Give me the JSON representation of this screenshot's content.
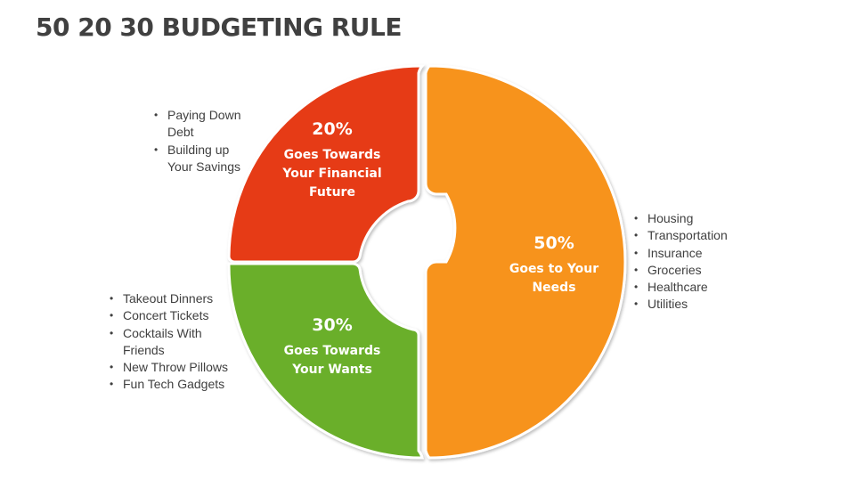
{
  "title": "50 20 30 BUDGETING RULE",
  "colors": {
    "needs": "#F7931E",
    "future": "#E63B16",
    "wants": "#6AAF2A",
    "hole": "#FFFFFF"
  },
  "segments": {
    "needs": {
      "percent": "50%",
      "description": "Goes to Your Needs",
      "value": 50
    },
    "future": {
      "percent": "20%",
      "description": "Goes Towards Your Financial Future",
      "value": 20
    },
    "wants": {
      "percent": "30%",
      "description": "Goes Towards Your Wants",
      "value": 30
    }
  },
  "lists": {
    "needs": [
      "Housing",
      "Transportation",
      "Insurance",
      "Groceries",
      "Healthcare",
      "Utilities"
    ],
    "future": [
      "Paying Down Debt",
      "Building up Your Savings"
    ],
    "wants": [
      "Takeout Dinners",
      "Concert Tickets",
      "Cocktails With Friends",
      "New Throw Pillows",
      "Fun Tech Gadgets"
    ]
  }
}
